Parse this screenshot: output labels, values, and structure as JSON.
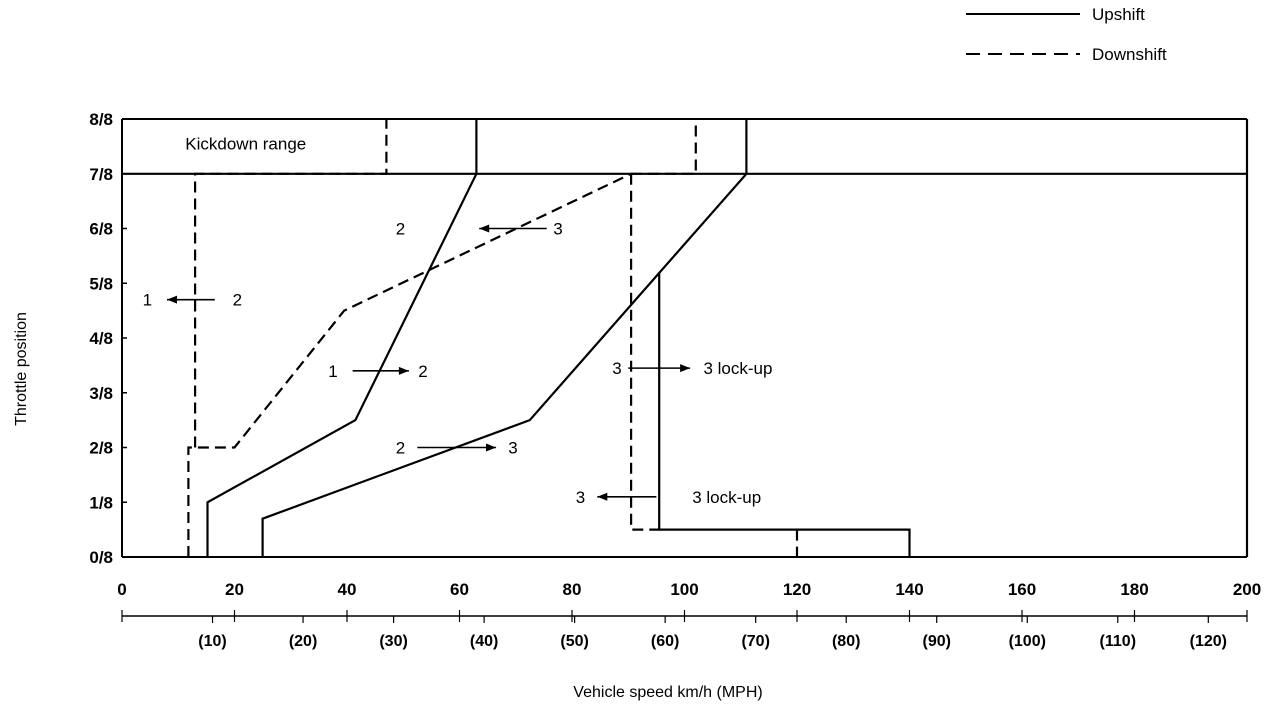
{
  "chart_data": {
    "type": "line",
    "title": "",
    "xlabel": "Vehicle speed  km/h (MPH)",
    "ylabel": "Throttle position",
    "xlim": [
      0,
      200
    ],
    "ylim": [
      0,
      8
    ],
    "x_ticks": [
      "0",
      "20",
      "40",
      "60",
      "80",
      "100",
      "120",
      "140",
      "160",
      "180",
      "200"
    ],
    "x_ticks_mph": [
      "(10)",
      "(20)",
      "(30)",
      "(40)",
      "(50)",
      "(60)",
      "(70)",
      "(80)",
      "(90)",
      "(100)",
      "(110)",
      "(120)"
    ],
    "y_ticks": [
      "0/8",
      "1/8",
      "2/8",
      "3/8",
      "4/8",
      "5/8",
      "6/8",
      "7/8",
      "8/8"
    ],
    "grid": false,
    "legend_position": "top-right",
    "legend": [
      {
        "label": "Upshift",
        "style": "solid"
      },
      {
        "label": "Downshift",
        "style": "dashed"
      }
    ],
    "series": [
      {
        "id": "up12",
        "style": "solid",
        "points": [
          [
            15.2,
            0
          ],
          [
            15.2,
            1
          ],
          [
            41.5,
            2.5
          ],
          [
            63,
            7
          ],
          [
            63,
            8
          ]
        ]
      },
      {
        "id": "up23",
        "style": "solid",
        "points": [
          [
            25,
            0
          ],
          [
            25,
            0.7
          ],
          [
            72.5,
            2.5
          ],
          [
            111,
            7
          ],
          [
            111,
            8
          ]
        ]
      },
      {
        "id": "up3lock",
        "style": "solid",
        "points": [
          [
            95.5,
            5.2
          ],
          [
            95.5,
            0.5
          ],
          [
            140,
            0.5
          ],
          [
            140,
            0
          ]
        ]
      },
      {
        "id": "down21",
        "style": "dashed",
        "points": [
          [
            11.8,
            0
          ],
          [
            11.8,
            2
          ],
          [
            20,
            2
          ],
          [
            39.5,
            4.5
          ],
          [
            90.5,
            7
          ]
        ]
      },
      {
        "id": "down21-kick",
        "style": "dashed",
        "points": [
          [
            13,
            2
          ],
          [
            13,
            7
          ],
          [
            47,
            7
          ],
          [
            47,
            8
          ]
        ]
      },
      {
        "id": "down32",
        "style": "dashed",
        "points": [
          [
            90.5,
            7
          ],
          [
            90.5,
            0.5
          ],
          [
            95.5,
            0.5
          ]
        ]
      },
      {
        "id": "down32-kick",
        "style": "dashed",
        "points": [
          [
            90.5,
            7
          ],
          [
            102,
            7
          ],
          [
            102,
            8
          ]
        ]
      },
      {
        "id": "down3unlock",
        "style": "dashed",
        "points": [
          [
            120,
            0.5
          ],
          [
            120,
            0
          ]
        ]
      },
      {
        "id": "kickdown-line",
        "style": "solid",
        "points": [
          [
            0,
            7
          ],
          [
            200,
            7
          ]
        ]
      },
      {
        "id": "frame-right",
        "style": "solid",
        "points": [
          [
            200,
            0
          ],
          [
            200,
            8
          ]
        ]
      }
    ],
    "annotations": [
      {
        "text": "Kickdown range",
        "x": 22,
        "y": 7.55
      },
      {
        "text": "1",
        "x": 4.5,
        "y": 4.7
      },
      {
        "text": "2",
        "x": 20.5,
        "y": 4.7
      },
      {
        "text": "1",
        "x": 37.5,
        "y": 3.4
      },
      {
        "text": "2",
        "x": 53.5,
        "y": 3.4
      },
      {
        "text": "2",
        "x": 49.5,
        "y": 6.0
      },
      {
        "text": "3",
        "x": 77.5,
        "y": 6.0
      },
      {
        "text": "2",
        "x": 49.5,
        "y": 2.0
      },
      {
        "text": "3",
        "x": 69.5,
        "y": 2.0
      },
      {
        "text": "3",
        "x": 88.0,
        "y": 3.45
      },
      {
        "text": "3 lock-up",
        "x": 109.5,
        "y": 3.45
      },
      {
        "text": "3",
        "x": 81.5,
        "y": 1.1
      },
      {
        "text": "3 lock-up",
        "x": 107.5,
        "y": 1.1
      }
    ]
  }
}
